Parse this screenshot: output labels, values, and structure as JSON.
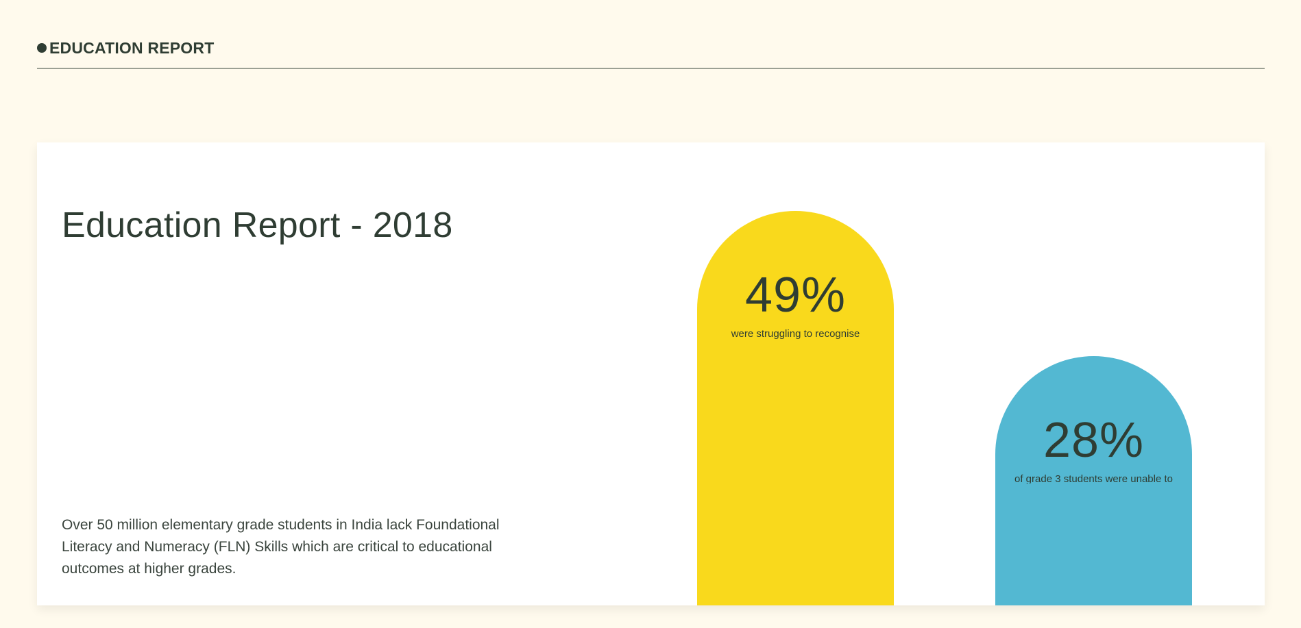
{
  "header": {
    "title": "EDUCATION REPORT"
  },
  "report": {
    "title": "Education Report - 2018",
    "description": "Over 50 million elementary grade students in India lack Foundational Literacy and Numeracy (FLN) Skills which are critical to educational outcomes at higher grades."
  },
  "stats": [
    {
      "value": "49%",
      "caption": "were struggling to recognise",
      "color": "#f9d91c"
    },
    {
      "value": "28%",
      "caption": "of grade 3 students were unable to",
      "color": "#53b8d2"
    }
  ],
  "colors": {
    "background": "#fffaed",
    "card": "#ffffff",
    "text": "#2f3d33"
  }
}
